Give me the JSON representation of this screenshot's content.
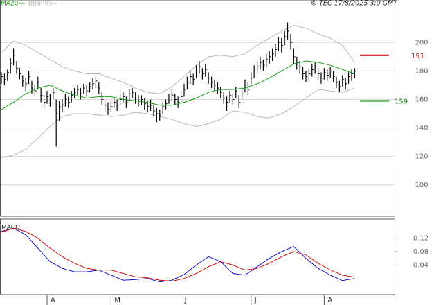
{
  "chart_data": [
    {
      "type": "ohlc",
      "source": "© TEC 17/8/2025 3:0 GMT",
      "xlim": [
        -0.45,
        129.1
      ],
      "ylim": [
        78,
        223
      ],
      "yticks": [
        100,
        120,
        140,
        160,
        180,
        200
      ],
      "grid": true,
      "bar_color": "#000000",
      "high": [
        179,
        178,
        181,
        189,
        196,
        187,
        182,
        177,
        175,
        180,
        173,
        170,
        176,
        168,
        163,
        166,
        164,
        168,
        160,
        159,
        160,
        164,
        162,
        166,
        168,
        170,
        168,
        171,
        170,
        172,
        175,
        176,
        172,
        165,
        160,
        158,
        159,
        161,
        160,
        164,
        165,
        162,
        167,
        168,
        165,
        163,
        163,
        161,
        159,
        160,
        156,
        154,
        153,
        158,
        160,
        164,
        167,
        164,
        162,
        166,
        171,
        176,
        180,
        178,
        184,
        187,
        182,
        185,
        179,
        176,
        174,
        172,
        169,
        165,
        162,
        166,
        164,
        169,
        163,
        168,
        174,
        172,
        179,
        184,
        187,
        190,
        188,
        192,
        194,
        196,
        199,
        204,
        203,
        208,
        214,
        206,
        196,
        190,
        187,
        183,
        180,
        182,
        185,
        186,
        182,
        179,
        182,
        181,
        183,
        180,
        176,
        173,
        177,
        175,
        179,
        181,
        182
      ],
      "low": [
        171,
        170,
        173,
        178,
        184,
        178,
        174,
        169,
        166,
        171,
        164,
        162,
        167,
        158,
        154,
        157,
        155,
        160,
        127,
        145,
        151,
        155,
        154,
        158,
        161,
        163,
        160,
        164,
        162,
        165,
        167,
        168,
        164,
        156,
        152,
        149,
        151,
        154,
        152,
        156,
        158,
        154,
        159,
        161,
        157,
        155,
        156,
        153,
        151,
        152,
        148,
        144,
        145,
        150,
        153,
        157,
        159,
        156,
        154,
        158,
        162,
        167,
        171,
        170,
        175,
        178,
        174,
        176,
        171,
        168,
        166,
        164,
        161,
        157,
        152,
        158,
        156,
        161,
        154,
        160,
        165,
        163,
        170,
        175,
        178,
        181,
        180,
        183,
        185,
        187,
        190,
        194,
        193,
        198,
        202,
        195,
        185,
        181,
        178,
        174,
        172,
        173,
        176,
        178,
        174,
        171,
        174,
        173,
        175,
        172,
        168,
        165,
        169,
        167,
        171,
        173,
        175
      ],
      "close": [
        176,
        174,
        179,
        185,
        191,
        182,
        178,
        173,
        171,
        176,
        168,
        166,
        172,
        163,
        158,
        162,
        159,
        165,
        150,
        155,
        156,
        160,
        158,
        163,
        165,
        167,
        164,
        168,
        166,
        169,
        171,
        173,
        168,
        160,
        156,
        153,
        155,
        158,
        156,
        160,
        162,
        158,
        164,
        165,
        161,
        159,
        160,
        157,
        155,
        156,
        152,
        150,
        149,
        155,
        157,
        161,
        163,
        160,
        158,
        162,
        167,
        172,
        176,
        174,
        180,
        183,
        178,
        181,
        175,
        172,
        170,
        168,
        165,
        161,
        158,
        163,
        160,
        166,
        158,
        164,
        170,
        167,
        175,
        180,
        183,
        186,
        184,
        188,
        190,
        192,
        195,
        200,
        198,
        204,
        208,
        200,
        190,
        186,
        183,
        178,
        176,
        178,
        181,
        183,
        178,
        175,
        179,
        177,
        180,
        176,
        172,
        169,
        174,
        171,
        176,
        178,
        180
      ],
      "line_x": [
        0,
        4,
        8,
        12,
        16,
        20,
        24,
        28,
        32,
        36,
        40,
        44,
        48,
        52,
        56,
        60,
        64,
        68,
        72,
        76,
        80,
        84,
        88,
        92,
        96,
        100,
        104,
        108,
        112,
        116
      ],
      "series": [
        {
          "name": "MA20",
          "color": "#10a010",
          "values": [
            153,
            158,
            164,
            168,
            170,
            166,
            163,
            161,
            162,
            162,
            160,
            159,
            158,
            156,
            156,
            158,
            161,
            165,
            167,
            167,
            168,
            171,
            175,
            180,
            185,
            187,
            186,
            184,
            181,
            178
          ]
        },
        {
          "name": "BBands",
          "color": "#b8b8b8",
          "upper": [
            193,
            201,
            198,
            193,
            188,
            183,
            180,
            178,
            178,
            175,
            172,
            168,
            165,
            164,
            169,
            176,
            184,
            190,
            191,
            190,
            192,
            198,
            203,
            208,
            212,
            210,
            206,
            203,
            198,
            186
          ],
          "lower": [
            119,
            121,
            125,
            133,
            141,
            148,
            150,
            150,
            149,
            148,
            149,
            151,
            150,
            148,
            146,
            143,
            141,
            143,
            146,
            152,
            151,
            148,
            147,
            150,
            155,
            161,
            167,
            166,
            165,
            168
          ]
        }
      ],
      "annotations": [
        {
          "value": 191,
          "color": "#c00000"
        },
        {
          "value": 159,
          "color": "#008000"
        }
      ]
    },
    {
      "type": "line",
      "title": "MACD",
      "xlim": [
        -0.45,
        129.1
      ],
      "ylim": [
        -0.048,
        0.177
      ],
      "yticks": [
        0.04,
        0.08,
        0.12
      ],
      "xticks": [
        {
          "value": 15,
          "label": "A"
        },
        {
          "value": 36,
          "label": "M"
        },
        {
          "value": 59,
          "label": "J"
        },
        {
          "value": 82,
          "label": "J"
        },
        {
          "value": 106,
          "label": "A"
        }
      ],
      "x": [
        0,
        4,
        8,
        12,
        16,
        20,
        24,
        28,
        32,
        36,
        40,
        44,
        48,
        52,
        56,
        60,
        64,
        68,
        72,
        76,
        80,
        84,
        88,
        92,
        96,
        100,
        104,
        108,
        112,
        116
      ],
      "series": [
        {
          "color": "#1010d0",
          "values": [
            0.14,
            0.15,
            0.13,
            0.09,
            0.05,
            0.03,
            0.02,
            0.02,
            0.025,
            0.01,
            -0.005,
            -0.003,
            0.0,
            -0.01,
            -0.005,
            0.012,
            0.04,
            0.065,
            0.05,
            0.015,
            0.01,
            0.035,
            0.06,
            0.08,
            0.095,
            0.06,
            0.03,
            0.01,
            -0.006,
            0.0
          ]
        },
        {
          "color": "#d01010",
          "values": [
            0.138,
            0.15,
            0.14,
            0.12,
            0.09,
            0.065,
            0.045,
            0.03,
            0.025,
            0.025,
            0.015,
            0.005,
            0.002,
            -0.005,
            -0.008,
            0.0,
            0.015,
            0.035,
            0.05,
            0.04,
            0.025,
            0.03,
            0.045,
            0.065,
            0.08,
            0.07,
            0.045,
            0.025,
            0.01,
            0.004
          ]
        }
      ]
    }
  ]
}
